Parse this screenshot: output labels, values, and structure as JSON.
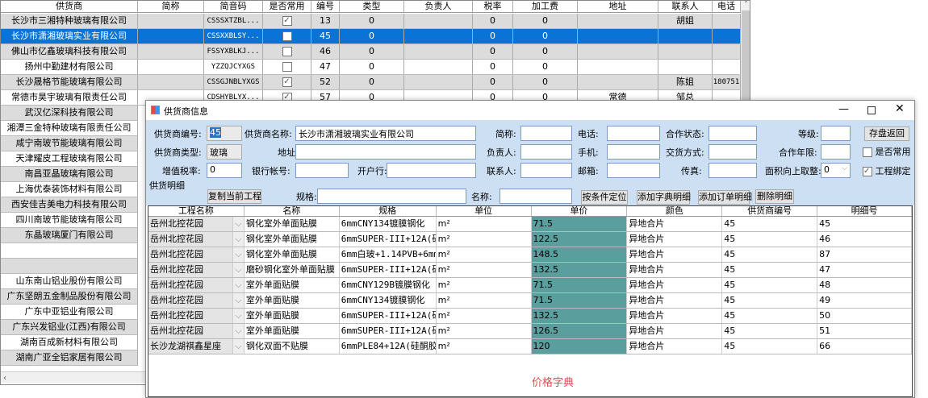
{
  "bg_grid": {
    "columns": [
      "供货商",
      "简称",
      "简音码",
      "是否常用",
      "编号",
      "类型",
      "负责人",
      "税率",
      "加工费",
      "地址",
      "联系人",
      "电话"
    ],
    "rows": [
      {
        "name": "长沙市三湘特种玻璃有限公司",
        "abbr": "",
        "code": "CSSSXTZBL...",
        "common": true,
        "id": "13",
        "type": "0",
        "owner": "",
        "tax": "0",
        "fee": "0",
        "addr": "",
        "contact": "胡姐",
        "phone": ""
      },
      {
        "name": "长沙市潇湘玻璃实业有限公司",
        "abbr": "",
        "code": "CSSXXBLSY...",
        "common": false,
        "id": "45",
        "type": "0",
        "owner": "",
        "tax": "0",
        "fee": "0",
        "addr": "",
        "contact": "",
        "phone": "",
        "selected": true
      },
      {
        "name": "佛山市亿鑫玻璃科技有限公司",
        "abbr": "",
        "code": "FSSYXBLKJ...",
        "common": false,
        "id": "46",
        "type": "0",
        "owner": "",
        "tax": "0",
        "fee": "0",
        "addr": "",
        "contact": "",
        "phone": ""
      },
      {
        "name": "扬州中勤建材有限公司",
        "abbr": "",
        "code": "YZZQJCYXGS",
        "common": false,
        "id": "47",
        "type": "0",
        "owner": "",
        "tax": "0",
        "fee": "0",
        "addr": "",
        "contact": "",
        "phone": ""
      },
      {
        "name": "长沙晟格节能玻璃有限公司",
        "abbr": "",
        "code": "CSSGJNBLYXGS",
        "common": true,
        "id": "52",
        "type": "0",
        "owner": "",
        "tax": "0",
        "fee": "0",
        "addr": "",
        "contact": "陈姐",
        "phone": "180751"
      },
      {
        "name": "常德市昊宇玻璃有限责任公司",
        "abbr": "",
        "code": "CDSHYBLYX...",
        "common": true,
        "id": "57",
        "type": "0",
        "owner": "",
        "tax": "0",
        "fee": "0",
        "addr": "常德",
        "contact": "邹总",
        "phone": ""
      },
      {
        "name": "武汉亿深科技有限公司"
      },
      {
        "name": "湘潭三金特种玻璃有限责任公司"
      },
      {
        "name": "咸宁南玻节能玻璃有限公司"
      },
      {
        "name": "天津耀皮工程玻璃有限公司"
      },
      {
        "name": "南昌亚晶玻璃有限公司"
      },
      {
        "name": "上海优泰装饰材料有限公司"
      },
      {
        "name": "西安佳吉美电力科技有限公司"
      },
      {
        "name": "四川南玻节能玻璃有限公司"
      },
      {
        "name": "东晶玻璃厦门有限公司"
      },
      {
        "name": ""
      },
      {
        "name": ""
      },
      {
        "name": "山东南山铝业股份有限公司"
      },
      {
        "name": "广东坚朗五金制品股份有限公司"
      },
      {
        "name": "广东中亚铝业有限公司"
      },
      {
        "name": "广东兴发铝业(江西)有限公司"
      },
      {
        "name": "湖南百成新材料有限公司"
      },
      {
        "name": "湖南广亚全铝家居有限公司"
      }
    ]
  },
  "dialog": {
    "title": "供货商信息",
    "form": {
      "supplier_no_label": "供货商编号:",
      "supplier_no": "45",
      "supplier_name_label": "供货商名称:",
      "supplier_name": "长沙市潇湘玻璃实业有限公司",
      "abbr_label": "简称:",
      "abbr": "",
      "phone_label": "电话:",
      "phone": "",
      "coop_status_label": "合作状态:",
      "coop_status": "",
      "level_label": "等级:",
      "level": "",
      "save_return": "存盘返回",
      "type_label": "供货商类型:",
      "type": "玻璃",
      "address_label": "地址:",
      "address": "",
      "owner_label": "负责人:",
      "owner": "",
      "mobile_label": "手机:",
      "mobile": "",
      "delivery_label": "交货方式:",
      "delivery": "",
      "coop_years_label": "合作年限:",
      "coop_years": "",
      "common_label": "是否常用",
      "common": false,
      "vat_label": "增值税率:",
      "vat": "0",
      "bank_acct_label": "银行帐号:",
      "bank_acct": "",
      "bank_label": "开户行:",
      "bank": "",
      "contact_label": "联系人:",
      "contact": "",
      "email_label": "邮箱:",
      "email": "",
      "fax_label": "传真:",
      "fax": "",
      "round_label": "面积向上取整:",
      "round": "0",
      "bind_label": "工程绑定",
      "bind": true,
      "detail_section": "供货明细",
      "copy_project": "复制当前工程",
      "spec_label": "规格:",
      "spec": "",
      "name_label": "名称:",
      "name": "",
      "locate": "按条件定位",
      "add_dict": "添加字典明细",
      "add_order": "添加订单明细",
      "delete_detail": "删除明细"
    },
    "grid": {
      "columns": [
        "工程名称",
        "名称",
        "规格",
        "单位",
        "单价",
        "颜色",
        "供货商编号",
        "明细号"
      ],
      "rows": [
        [
          "岳州北控花园",
          "钢化室外单面贴膜",
          "6mmCNY134镀膜钢化",
          "m²",
          "71.5",
          "异地合片",
          "45",
          "45"
        ],
        [
          "岳州北控花园",
          "钢化室外单面贴膜",
          "6mmSUPER-III+12A(硅...",
          "m²",
          "122.5",
          "异地合片",
          "45",
          "46"
        ],
        [
          "岳州北控花园",
          "钢化室外单面贴膜",
          "6mm白玻+1.14PVB+6mm...",
          "m²",
          "148.5",
          "异地合片",
          "45",
          "87"
        ],
        [
          "岳州北控花园",
          "磨砂钢化室外单面贴膜",
          "6mmSUPER-III+12A(硅...",
          "m²",
          "132.5",
          "异地合片",
          "45",
          "47"
        ],
        [
          "岳州北控花园",
          "室外单面贴膜",
          "6mmCNY129B镀膜钢化",
          "m²",
          "71.5",
          "异地合片",
          "45",
          "48"
        ],
        [
          "岳州北控花园",
          "室外单面贴膜",
          "6mmCNY134镀膜钢化",
          "m²",
          "71.5",
          "异地合片",
          "45",
          "49"
        ],
        [
          "岳州北控花园",
          "室外单面贴膜",
          "6mmSUPER-III+12A(硅...",
          "m²",
          "132.5",
          "异地合片",
          "45",
          "50"
        ],
        [
          "岳州北控花园",
          "室外单面贴膜",
          "6mmSUPER-III+12A(硅...",
          "m²",
          "126.5",
          "异地合片",
          "45",
          "51"
        ],
        [
          "长沙龙湖祺鑫星座",
          "钢化双面不贴膜",
          "6mmPLE84+12A(硅酮胶...",
          "m²",
          "120",
          "异地合片",
          "45",
          "66"
        ]
      ]
    },
    "footer_label": "价格字典"
  },
  "colors": {
    "selection": "#0a74d6",
    "form_bg": "#cddff3",
    "price_cell": "#5a9e9e",
    "footer_text": "#e0484f"
  }
}
